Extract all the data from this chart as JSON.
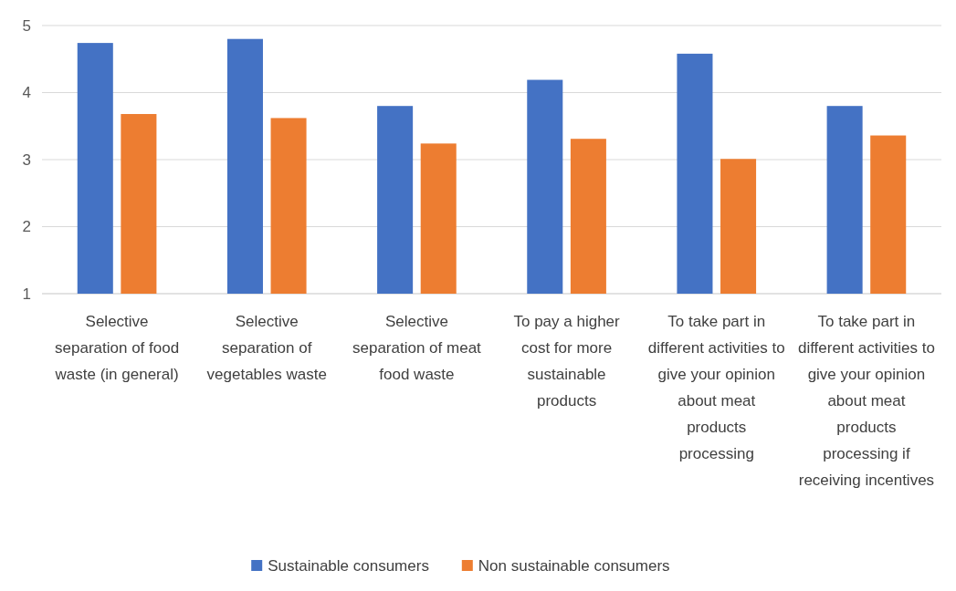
{
  "chart_data": {
    "type": "bar",
    "categories": [
      "Selective separation of food waste (in general)",
      "Selective separation of vegetables waste",
      "Selective separation of meat food waste",
      "To pay a higher cost for more sustainable products",
      "To take part in different activities to give your opinion about meat products processing",
      "To take part in different activities to give your opinion about meat products processing if receiving incentives"
    ],
    "series": [
      {
        "name": "Sustainable consumers",
        "color": "#4472c4",
        "values": [
          4.74,
          4.8,
          3.8,
          4.19,
          4.58,
          3.8
        ]
      },
      {
        "name": "Non sustainable consumers",
        "color": "#ed7d31",
        "values": [
          3.68,
          3.62,
          3.24,
          3.31,
          3.01,
          3.36
        ]
      }
    ],
    "ylim": [
      1,
      5
    ],
    "yticks": [
      1,
      2,
      3,
      4,
      5
    ],
    "grid": "y",
    "legend": "bottom"
  }
}
